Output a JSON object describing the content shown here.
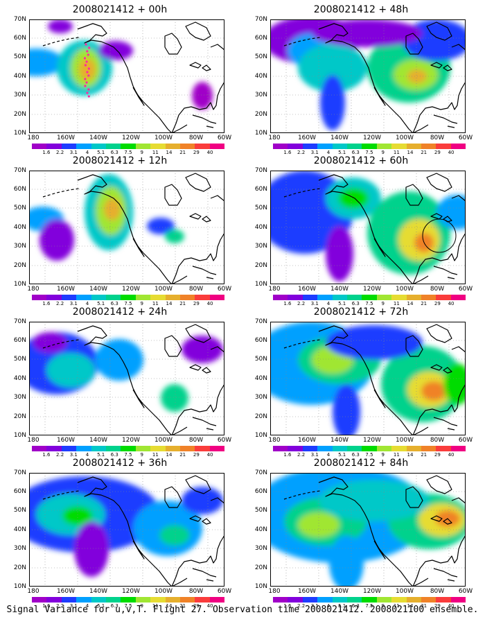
{
  "caption": "Signal Variance for u,v,T. Flight 27. Observation time 2008021412. 2008021100 ensemble.",
  "lat_labels": [
    "70N",
    "60N",
    "50N",
    "40N",
    "30N",
    "20N",
    "10N"
  ],
  "lon_labels": [
    "180",
    "160W",
    "140W",
    "120W",
    "100W",
    "80W",
    "60W"
  ],
  "colorbar": {
    "colors": [
      "#a000c8",
      "#8200dc",
      "#1e3cff",
      "#00a0ff",
      "#00c8c8",
      "#00d28c",
      "#00dc00",
      "#a0e632",
      "#e6dc32",
      "#e6af2d",
      "#f08228",
      "#fa3c3c",
      "#f00082"
    ],
    "labels": [
      "1.6",
      "2.2",
      "3.1",
      "4",
      "5.1",
      "6.3",
      "7.5",
      "9",
      "11",
      "14",
      "21",
      "29",
      "40"
    ]
  },
  "panels": [
    {
      "title": "2008021412 + 00h",
      "lead_hours": 0
    },
    {
      "title": "2008021412 + 48h",
      "lead_hours": 48
    },
    {
      "title": "2008021412 + 12h",
      "lead_hours": 12
    },
    {
      "title": "2008021412 + 60h",
      "lead_hours": 60
    },
    {
      "title": "2008021412 + 24h",
      "lead_hours": 24
    },
    {
      "title": "2008021412 + 72h",
      "lead_hours": 72
    },
    {
      "title": "2008021412 + 36h",
      "lead_hours": 36
    },
    {
      "title": "2008021412 + 84h",
      "lead_hours": 84
    }
  ]
}
